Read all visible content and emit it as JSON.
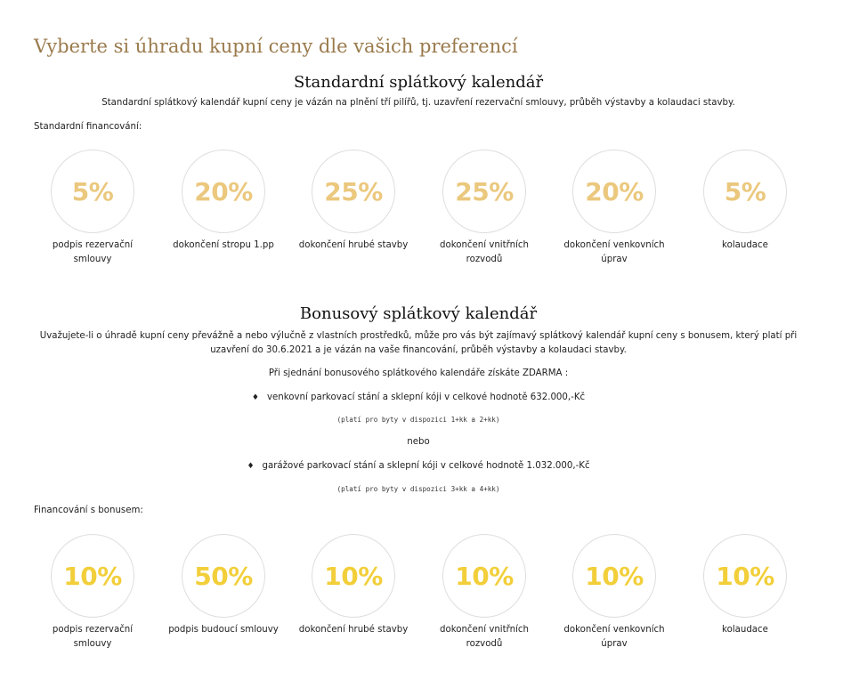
{
  "page": {
    "heading": "Vyberte si úhradu kupní ceny dle vašich preferencí"
  },
  "colors": {
    "heading": "#9a7a4c",
    "standard_percent": "#ebc87e",
    "bonus_percent": "#f2cf3a",
    "circle_border": "#dedede"
  },
  "standard": {
    "title": "Standardní splátkový kalendář",
    "description": "Standardní splátkový kalendář kupní ceny je vázán na plnění tří pilířů, tj. uzavření rezervační smlouvy, průběh výstavby a kolaudaci stavby.",
    "financing_label": "Standardní financování:",
    "steps": [
      {
        "percent": "5%",
        "label": "podpis rezervační smlouvy"
      },
      {
        "percent": "20%",
        "label": "dokončení stropu 1.pp"
      },
      {
        "percent": "25%",
        "label": "dokončení hrubé stavby"
      },
      {
        "percent": "25%",
        "label": "dokončení vnitřních rozvodů"
      },
      {
        "percent": "20%",
        "label": "dokončení venkovních úprav"
      },
      {
        "percent": "5%",
        "label": "kolaudace"
      }
    ]
  },
  "bonus": {
    "title": "Bonusový splátkový kalendář",
    "description": "Uvažujete-li o úhradě kupní ceny převážně a nebo výlučně z vlastních prostředků, může pro vás být zajímavý splátkový kalendář kupní ceny s bonusem, který platí při uzavření do 30.6.2021 a je vázán na vaše financování, průběh výstavby a kolaudaci stavby.",
    "free_intro": "Při sjednání bonusového splátkového kalendáře získáte ZDARMA :",
    "bullet_symbol": "♦",
    "option_1": "venkovní parkovací stání a sklepní kóji v celkové hodnotě 632.000,-Kč",
    "note_1": "(platí pro byty v dispozici 1+kk a 2+kk)",
    "or_text": "nebo",
    "option_2": "garážové parkovací stání a sklepní kóji v celkové hodnotě 1.032.000,-Kč",
    "note_2": "(platí pro byty v dispozici 3+kk a 4+kk)",
    "financing_label": "Financování s bonusem:",
    "steps": [
      {
        "percent": "10%",
        "label": "podpis rezervační smlouvy"
      },
      {
        "percent": "50%",
        "label": "podpis budoucí smlouvy"
      },
      {
        "percent": "10%",
        "label": "dokončení hrubé stavby"
      },
      {
        "percent": "10%",
        "label": "dokončení vnitřních rozvodů"
      },
      {
        "percent": "10%",
        "label": "dokončení venkovních úprav"
      },
      {
        "percent": "10%",
        "label": "kolaudace"
      }
    ]
  }
}
